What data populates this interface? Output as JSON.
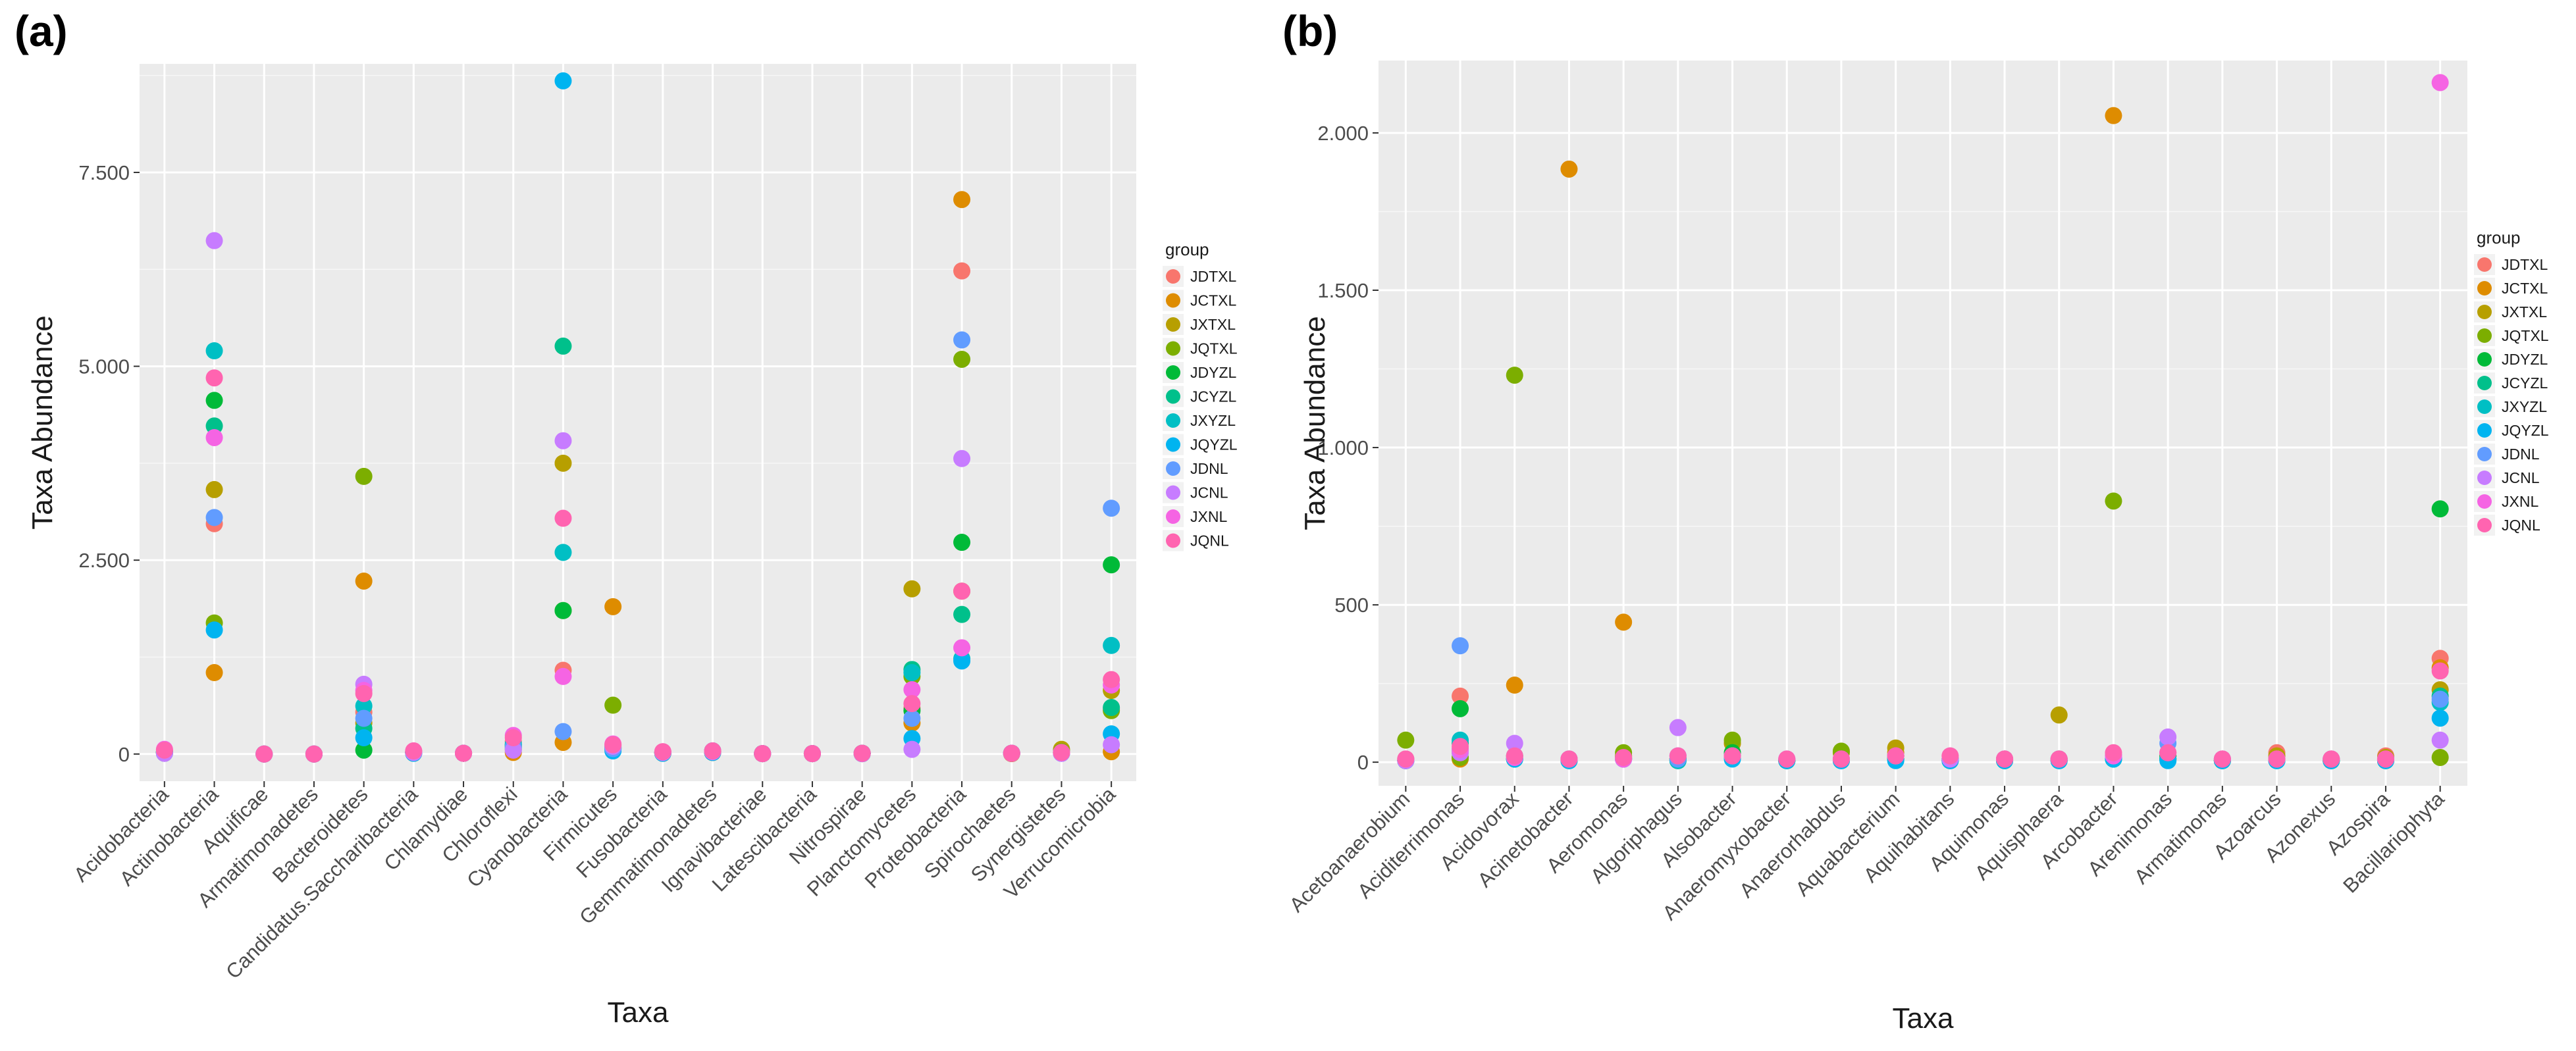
{
  "colors": [
    "#F8766D",
    "#DE8C00",
    "#B79F00",
    "#7CAE00",
    "#00BA38",
    "#00C08B",
    "#00BFC4",
    "#00B4F0",
    "#619CFF",
    "#C77CFF",
    "#F564E3",
    "#FF64B0"
  ],
  "chart_data": [
    {
      "type": "scatter",
      "panel_label": "(a)",
      "title": "",
      "xlabel": "Taxa",
      "ylabel": "Taxa Abundance",
      "ylim": [
        -350,
        8900
      ],
      "yticks": [
        0,
        2500,
        5000,
        7500
      ],
      "ytick_labels": [
        "0",
        "2.500",
        "5.000",
        "7.500"
      ],
      "grid": true,
      "legend_title": "group",
      "legend_position": "right",
      "groups": [
        "JDTXL",
        "JCTXL",
        "JXTXL",
        "JQTXL",
        "JDYZL",
        "JCYZL",
        "JXYZL",
        "JQYZL",
        "JDNL",
        "JCNL",
        "JXNL",
        "JQNL"
      ],
      "categories": [
        "Acidobacteria",
        "Actinobacteria",
        "Aquificae",
        "Armatimonadetes",
        "Bacteroidetes",
        "Candidatus.Saccharibacteria",
        "Chlamydiae",
        "Chloroflexi",
        "Cyanobacteria",
        "Firmicutes",
        "Fusobacteria",
        "Gemmatimonadetes",
        "Ignavibacteriae",
        "Latescibacteria",
        "Nitrospirae",
        "Planctomycetes",
        "Proteobacteria",
        "Spirochaetes",
        "Synergistetes",
        "Verrucomicrobia"
      ],
      "series": [
        {
          "name": "JDTXL",
          "values": [
            30,
            2970,
            0,
            0,
            540,
            20,
            10,
            160,
            1080,
            110,
            20,
            30,
            5,
            5,
            10,
            590,
            6230,
            10,
            10,
            580
          ]
        },
        {
          "name": "JCTXL",
          "values": [
            20,
            1050,
            0,
            0,
            2230,
            10,
            10,
            20,
            150,
            1900,
            10,
            20,
            5,
            5,
            5,
            400,
            7150,
            5,
            20,
            30
          ]
        },
        {
          "name": "JXTXL",
          "values": [
            10,
            3410,
            0,
            0,
            400,
            20,
            10,
            100,
            3750,
            70,
            10,
            20,
            5,
            5,
            5,
            2130,
            2100,
            10,
            60,
            820
          ]
        },
        {
          "name": "JQTXL",
          "values": [
            20,
            1690,
            0,
            0,
            3580,
            30,
            10,
            60,
            1850,
            630,
            20,
            30,
            5,
            5,
            5,
            1000,
            5090,
            10,
            30,
            560
          ]
        },
        {
          "name": "JDYZL",
          "values": [
            30,
            4560,
            0,
            0,
            50,
            20,
            10,
            120,
            1850,
            80,
            20,
            40,
            5,
            5,
            10,
            560,
            2730,
            10,
            20,
            2440
          ]
        },
        {
          "name": "JCYZL",
          "values": [
            20,
            4230,
            0,
            0,
            330,
            20,
            10,
            110,
            5260,
            60,
            20,
            40,
            5,
            5,
            10,
            1090,
            1800,
            10,
            20,
            600
          ]
        },
        {
          "name": "JXYZL",
          "values": [
            30,
            5200,
            0,
            0,
            620,
            20,
            10,
            130,
            2600,
            90,
            20,
            40,
            5,
            5,
            10,
            1050,
            1230,
            10,
            20,
            1400
          ]
        },
        {
          "name": "JQYZL",
          "values": [
            10,
            1600,
            0,
            0,
            210,
            10,
            10,
            80,
            8680,
            40,
            10,
            20,
            5,
            5,
            5,
            200,
            1200,
            10,
            10,
            260
          ]
        },
        {
          "name": "JDNL",
          "values": [
            20,
            3050,
            0,
            0,
            460,
            20,
            10,
            90,
            290,
            70,
            20,
            40,
            5,
            5,
            5,
            460,
            5340,
            10,
            10,
            3170
          ]
        },
        {
          "name": "JCNL",
          "values": [
            10,
            6620,
            0,
            0,
            900,
            20,
            10,
            50,
            4040,
            100,
            20,
            30,
            5,
            5,
            5,
            60,
            3810,
            10,
            10,
            120
          ]
        },
        {
          "name": "JXNL",
          "values": [
            60,
            4080,
            0,
            0,
            820,
            40,
            10,
            240,
            1000,
            130,
            30,
            40,
            5,
            5,
            10,
            830,
            1370,
            10,
            20,
            890
          ]
        },
        {
          "name": "JQNL",
          "values": [
            50,
            4850,
            0,
            0,
            780,
            40,
            10,
            210,
            3040,
            120,
            30,
            40,
            5,
            5,
            10,
            650,
            2100,
            10,
            20,
            960
          ]
        }
      ]
    },
    {
      "type": "scatter",
      "panel_label": "(b)",
      "title": "",
      "xlabel": "Taxa",
      "ylabel": "Taxa Abundance",
      "ylim": [
        -75,
        2230
      ],
      "yticks": [
        0,
        500,
        1000,
        1500,
        2000
      ],
      "ytick_labels": [
        "0",
        "500",
        "1.000",
        "1.500",
        "2.000"
      ],
      "grid": true,
      "legend_title": "group",
      "legend_position": "right",
      "groups": [
        "JDTXL",
        "JCTXL",
        "JXTXL",
        "JQTXL",
        "JDYZL",
        "JCYZL",
        "JXYZL",
        "JQYZL",
        "JDNL",
        "JCNL",
        "JXNL",
        "JQNL"
      ],
      "categories": [
        "Acetoanaerobium",
        "Aciditerrimonas",
        "Acidovorax",
        "Acinetobacter",
        "Aeromonas",
        "Algoriphagus",
        "Alsobacter",
        "Anaeromyxobacter",
        "Anaerorhabdus",
        "Aquabacterium",
        "Aquihabitans",
        "Aquimonas",
        "Aquisphaera",
        "Arcobacter",
        "Arenimonas",
        "Armatimonas",
        "Azoarcus",
        "Azonexus",
        "Azospira",
        "Bacillariophyta"
      ],
      "series": [
        {
          "name": "JDTXL",
          "values": [
            5,
            210,
            20,
            10,
            20,
            10,
            60,
            5,
            5,
            20,
            10,
            10,
            10,
            20,
            30,
            5,
            30,
            10,
            20,
            330
          ]
        },
        {
          "name": "JCTXL",
          "values": [
            5,
            10,
            245,
            1885,
            445,
            5,
            20,
            5,
            10,
            30,
            5,
            5,
            5,
            2055,
            10,
            5,
            10,
            5,
            5,
            300
          ]
        },
        {
          "name": "JXTXL",
          "values": [
            10,
            30,
            20,
            10,
            20,
            10,
            60,
            5,
            30,
            45,
            10,
            10,
            150,
            20,
            20,
            10,
            20,
            10,
            15,
            230
          ]
        },
        {
          "name": "JQTXL",
          "values": [
            70,
            15,
            1230,
            5,
            30,
            10,
            70,
            5,
            35,
            10,
            5,
            10,
            10,
            830,
            10,
            5,
            10,
            5,
            10,
            15
          ]
        },
        {
          "name": "JDYZL",
          "values": [
            5,
            170,
            10,
            10,
            15,
            10,
            30,
            5,
            10,
            20,
            10,
            5,
            10,
            10,
            20,
            5,
            10,
            5,
            10,
            805
          ]
        },
        {
          "name": "JCYZL",
          "values": [
            5,
            60,
            10,
            5,
            10,
            5,
            20,
            5,
            5,
            10,
            5,
            5,
            5,
            10,
            10,
            5,
            5,
            5,
            5,
            210
          ]
        },
        {
          "name": "JXYZL",
          "values": [
            5,
            70,
            10,
            5,
            10,
            5,
            20,
            5,
            5,
            10,
            5,
            5,
            5,
            10,
            10,
            5,
            5,
            5,
            5,
            190
          ]
        },
        {
          "name": "JQYZL",
          "values": [
            5,
            40,
            10,
            5,
            10,
            20,
            10,
            5,
            5,
            5,
            5,
            5,
            5,
            10,
            5,
            5,
            5,
            5,
            5,
            140
          ]
        },
        {
          "name": "JDNL",
          "values": [
            5,
            370,
            20,
            10,
            10,
            10,
            20,
            10,
            10,
            20,
            10,
            10,
            10,
            20,
            60,
            10,
            10,
            10,
            10,
            200
          ]
        },
        {
          "name": "JCNL",
          "values": [
            5,
            30,
            60,
            10,
            10,
            110,
            20,
            10,
            10,
            20,
            10,
            10,
            10,
            20,
            80,
            10,
            10,
            10,
            10,
            70
          ]
        },
        {
          "name": "JXNL",
          "values": [
            10,
            40,
            15,
            10,
            10,
            20,
            20,
            10,
            10,
            20,
            20,
            10,
            10,
            20,
            30,
            10,
            10,
            10,
            10,
            2160
          ]
        },
        {
          "name": "JQNL",
          "values": [
            10,
            50,
            20,
            10,
            15,
            20,
            20,
            10,
            10,
            20,
            20,
            10,
            10,
            30,
            30,
            10,
            10,
            10,
            10,
            290
          ]
        }
      ]
    }
  ]
}
